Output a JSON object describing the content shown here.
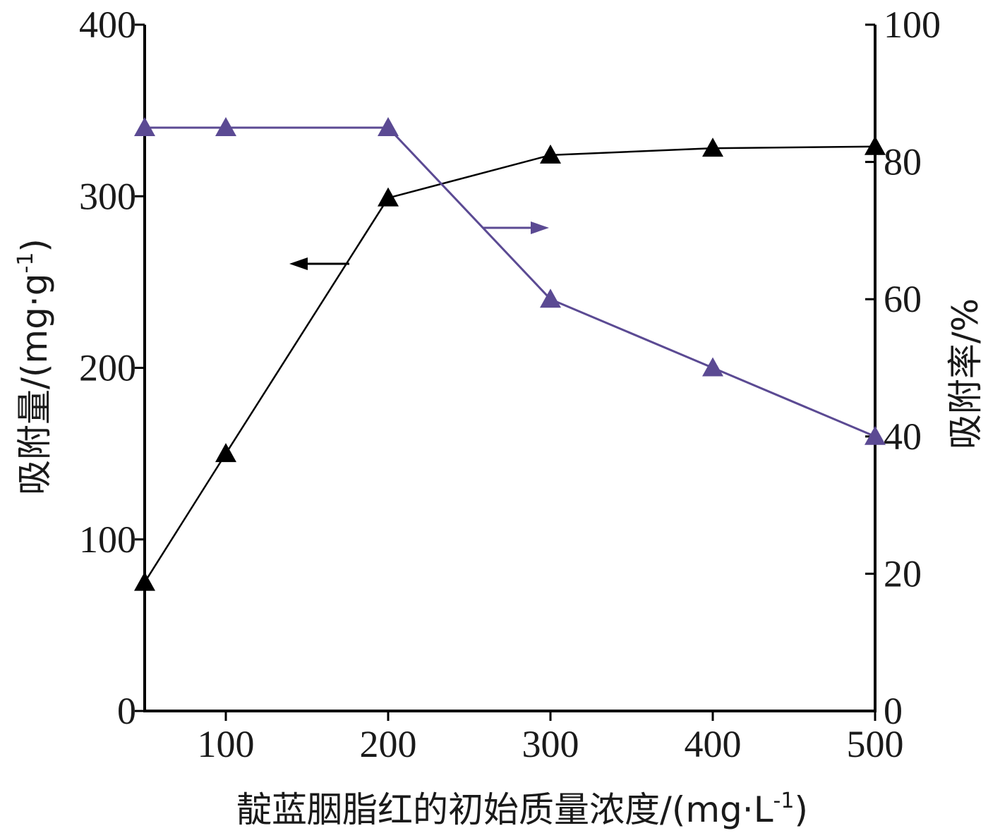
{
  "chart_data": {
    "type": "line",
    "x": [
      50,
      100,
      200,
      300,
      400,
      500
    ],
    "xlabel": "靛蓝胭脂红的初始质量浓度/(mg·L",
    "xlabel_sup": "-1",
    "xlabel_end": ")",
    "xlim": [
      50,
      500
    ],
    "xticks": [
      100,
      200,
      300,
      400,
      500
    ],
    "ylabel_left": "吸附量/(mg·g",
    "ylabel_left_sup": "-1",
    "ylabel_left_end": ")",
    "ylim_left": [
      0,
      400
    ],
    "yticks_left": [
      0,
      100,
      200,
      300,
      400
    ],
    "ylabel_right": "吸附率/%",
    "ylim_right": [
      0,
      100
    ],
    "yticks_right": [
      0,
      20,
      40,
      60,
      80,
      100
    ],
    "grid": false,
    "legend": "none",
    "series": [
      {
        "axis": "left",
        "color": "#000000",
        "marker": "triangle",
        "values": [
          75,
          150,
          299,
          324,
          328,
          329
        ]
      },
      {
        "axis": "right",
        "color": "#5b4a93",
        "marker": "triangle",
        "values": [
          85,
          85,
          85,
          60,
          50,
          40
        ]
      }
    ],
    "annotations": [
      {
        "type": "arrow",
        "direction": "left",
        "points_to": "left-axis",
        "color": "#000000"
      },
      {
        "type": "arrow",
        "direction": "right",
        "points_to": "right-axis",
        "color": "#5b4a93"
      }
    ]
  }
}
